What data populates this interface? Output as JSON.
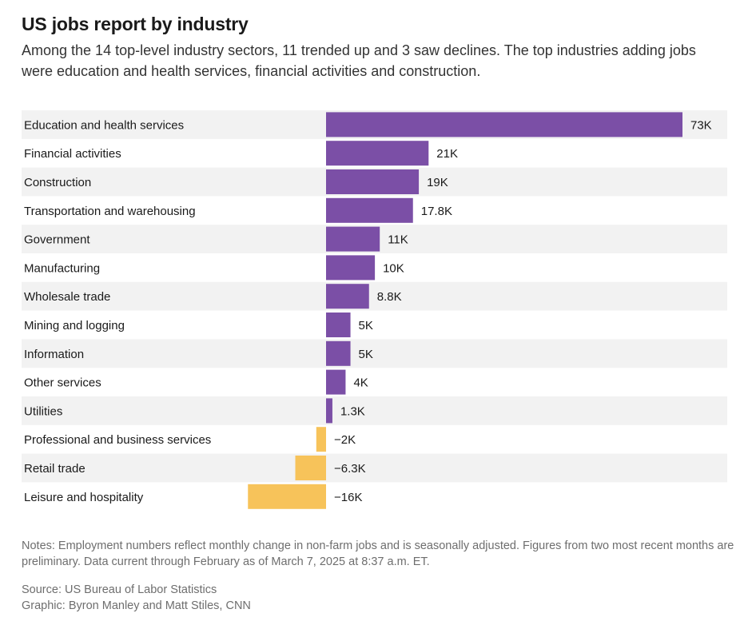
{
  "header": {
    "title": "US jobs report by industry",
    "subtitle": "Among the 14 top-level industry sectors, 11 trended up and 3 saw declines. The top industries adding jobs were education and health services, financial activities and construction."
  },
  "footer": {
    "notes": "Notes: Employment numbers reflect monthly change in non-farm jobs and is seasonally adjusted. Figures from two most recent months are preliminary. Data current through February as of March 7, 2025 at 8:37 a.m. ET.",
    "source": "Source: US Bureau of Labor Statistics",
    "graphic": "Graphic: Byron Manley and Matt Stiles, CNN"
  },
  "chart_data": {
    "type": "bar",
    "orientation": "horizontal",
    "categories": [
      "Education and health services",
      "Financial activities",
      "Construction",
      "Transportation and warehousing",
      "Government",
      "Manufacturing",
      "Wholesale trade",
      "Mining and logging",
      "Information",
      "Other services",
      "Utilities",
      "Professional and business services",
      "Retail trade",
      "Leisure and hospitality"
    ],
    "values": [
      73000,
      21000,
      19000,
      17800,
      11000,
      10000,
      8800,
      5000,
      5000,
      4000,
      1300,
      -2000,
      -6300,
      -16000
    ],
    "data_labels": [
      "73K",
      "21K",
      "19K",
      "17.8K",
      "11K",
      "10K",
      "8.8K",
      "5K",
      "5K",
      "4K",
      "1.3K",
      "−2K",
      "−6.3K",
      "−16K"
    ],
    "colors": {
      "positive": "#7b4fa6",
      "negative": "#f7c35a",
      "row_band": "#f2f2f2"
    },
    "grid": false,
    "legend": "none"
  }
}
